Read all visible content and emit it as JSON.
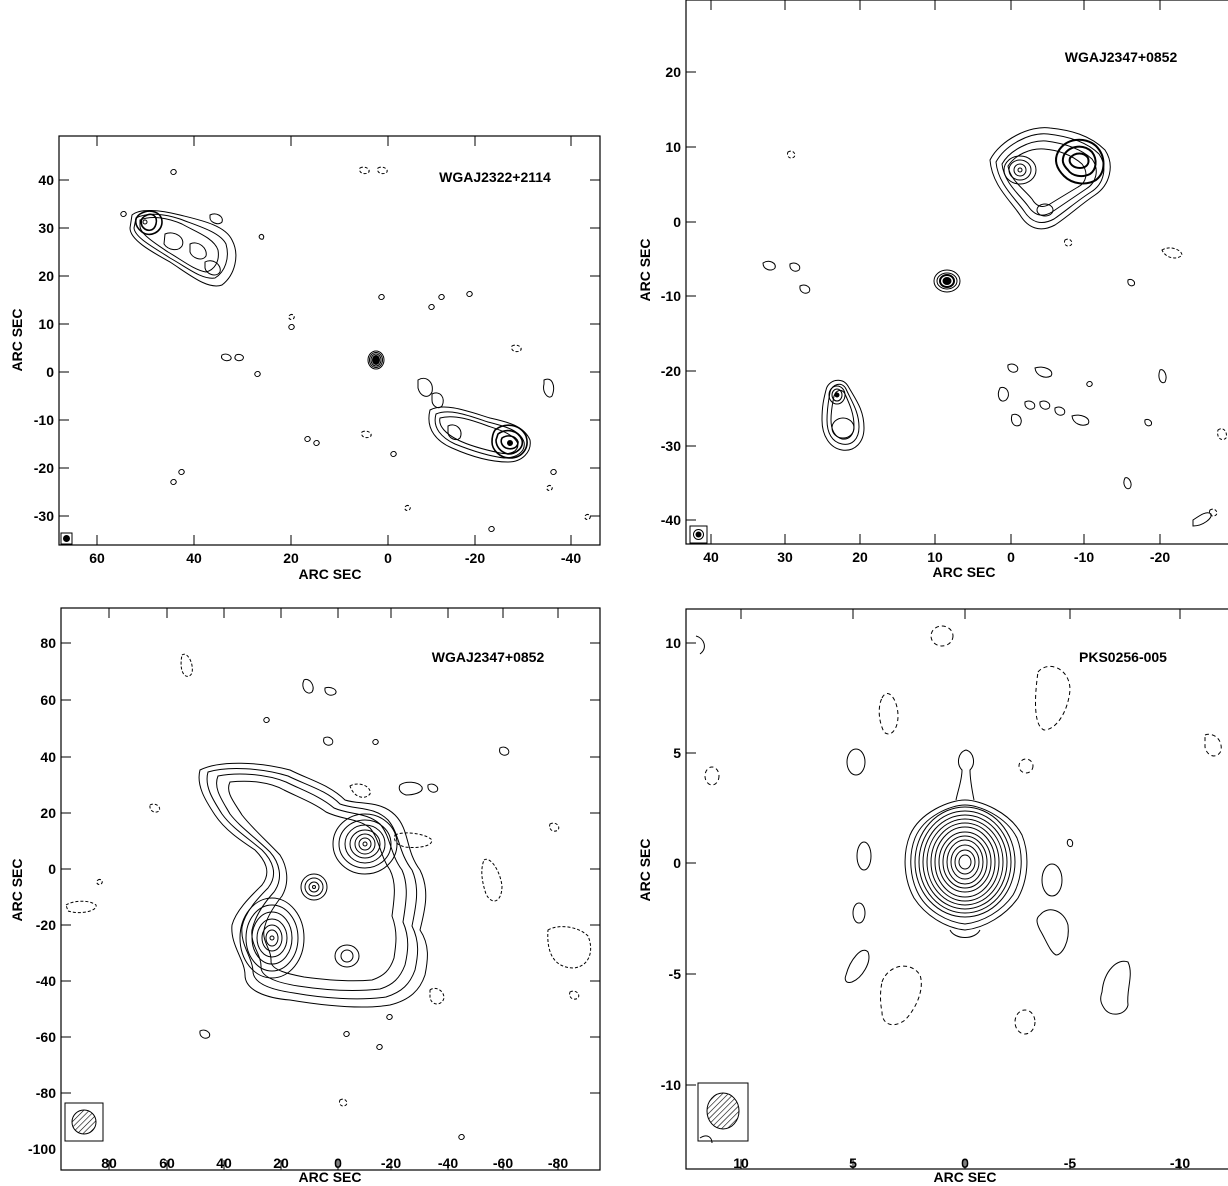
{
  "panels": [
    {
      "source": "WGAJ2322+2114",
      "xlabel": "ARC SEC",
      "ylabel": "ARC SEC",
      "xticks": [
        "60",
        "40",
        "20",
        "0",
        "-20",
        "-40"
      ],
      "yticks": [
        "40",
        "30",
        "20",
        "10",
        "0",
        "-10",
        "-20",
        "-30"
      ]
    },
    {
      "source": "WGAJ2347+0852",
      "xlabel": "ARC SEC",
      "ylabel": "ARC SEC",
      "xticks": [
        "40",
        "30",
        "20",
        "10",
        "0",
        "-10",
        "-20"
      ],
      "yticks": [
        "20",
        "10",
        "0",
        "-10",
        "-20",
        "-30",
        "-40"
      ]
    },
    {
      "source": "WGAJ2347+0852",
      "xlabel": "ARC SEC",
      "ylabel": "ARC SEC",
      "xticks": [
        "80",
        "60",
        "40",
        "20",
        "0",
        "-20",
        "-40",
        "-60",
        "-80"
      ],
      "yticks": [
        "80",
        "60",
        "40",
        "20",
        "0",
        "-20",
        "-40",
        "-60",
        "-80",
        "-100"
      ]
    },
    {
      "source": "PKS0256-005",
      "xlabel": "ARC SEC",
      "ylabel": "ARC SEC",
      "xticks": [
        "10",
        "5",
        "0",
        "-5",
        "-10"
      ],
      "yticks": [
        "10",
        "5",
        "0",
        "-5",
        "-10"
      ]
    }
  ]
}
